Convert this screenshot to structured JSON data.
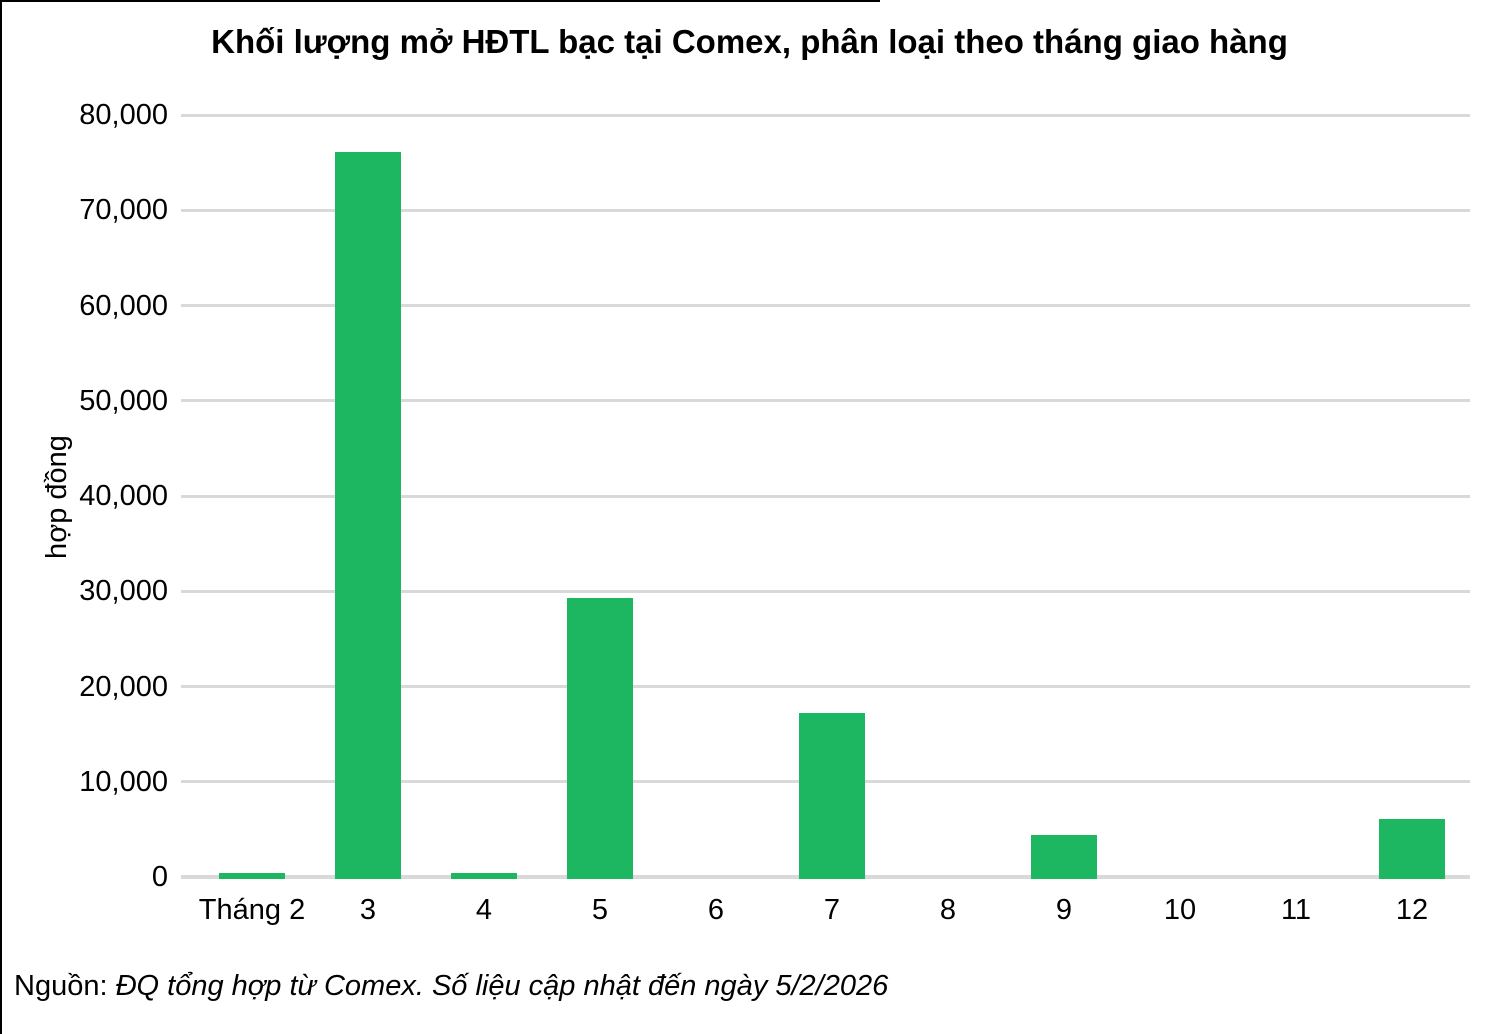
{
  "chart_data": {
    "type": "bar",
    "title": "Khối lượng mở HĐTL bạc tại Comex, phân loại theo tháng giao hàng",
    "xlabel": "",
    "ylabel": "hợp đồng",
    "categories": [
      "Tháng 2",
      "3",
      "4",
      "5",
      "6",
      "7",
      "8",
      "9",
      "10",
      "11",
      "12"
    ],
    "values": [
      400,
      76100,
      400,
      29300,
      0,
      17200,
      0,
      4400,
      0,
      0,
      6100
    ],
    "ylim": [
      0,
      80000
    ],
    "ytick_step": 10000,
    "ytick_labels": [
      "0",
      "10,000",
      "20,000",
      "30,000",
      "40,000",
      "50,000",
      "60,000",
      "70,000",
      "80,000"
    ],
    "grid": true,
    "legend": "none",
    "bar_color": "#1cb760",
    "gridline_color": "#d9d9d9",
    "text_color": "#000000"
  },
  "source_note": {
    "prefix": "Nguồn:",
    "text": "ĐQ tổng hợp từ Comex. Số liệu cập nhật đến ngày 5/2/2026"
  }
}
